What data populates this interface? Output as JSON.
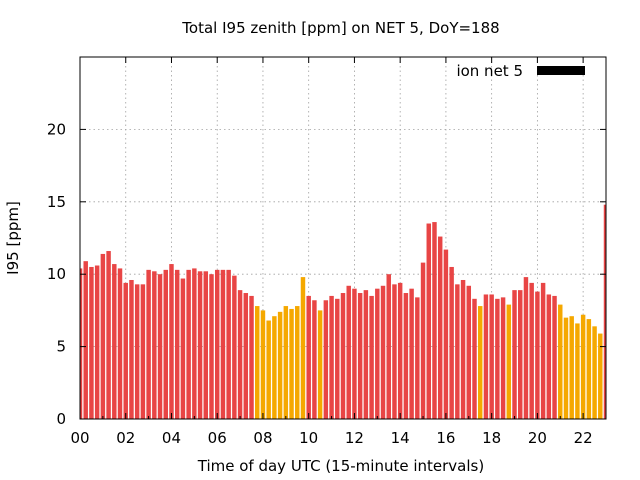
{
  "chart_data": {
    "type": "bar",
    "title": "Total I95 zenith [ppm] on NET 5, DoY=188",
    "xlabel": "Time of day UTC (15-minute intervals)",
    "ylabel": "I95 [ppm]",
    "xlim": [
      0,
      23
    ],
    "ylim": [
      0,
      25
    ],
    "x_ticks": [
      "00",
      "02",
      "04",
      "06",
      "08",
      "10",
      "12",
      "14",
      "16",
      "18",
      "20",
      "22"
    ],
    "y_ticks": [
      "0",
      "5",
      "10",
      "15",
      "20"
    ],
    "grid": true,
    "legend": {
      "position": "top-right",
      "label": "ion net 5",
      "color": "#000000"
    },
    "colors": {
      "high": "#e84545",
      "low": "#f5a800"
    },
    "series": [
      {
        "name": "ion net 5",
        "interval_hours": 0.25,
        "values": [
          10.4,
          10.9,
          10.5,
          10.6,
          11.4,
          11.6,
          10.7,
          10.4,
          9.4,
          9.6,
          9.3,
          9.3,
          10.3,
          10.2,
          10.0,
          10.3,
          10.7,
          10.3,
          9.7,
          10.3,
          10.4,
          10.2,
          10.2,
          10.0,
          10.3,
          10.3,
          10.3,
          9.9,
          8.9,
          8.7,
          8.5,
          7.8,
          7.5,
          6.8,
          7.1,
          7.4,
          7.8,
          7.6,
          7.8,
          9.8,
          8.5,
          8.2,
          7.5,
          8.2,
          8.5,
          8.3,
          8.7,
          9.2,
          9.0,
          8.7,
          8.9,
          8.5,
          9.0,
          9.2,
          10.0,
          9.3,
          9.4,
          8.7,
          9.0,
          8.4,
          10.8,
          13.5,
          13.6,
          12.6,
          11.7,
          10.5,
          9.3,
          9.6,
          9.2,
          8.3,
          7.8,
          8.6,
          8.6,
          8.3,
          8.4,
          7.9,
          8.9,
          8.9,
          9.8,
          9.4,
          8.8,
          9.4,
          8.6,
          8.5,
          7.9,
          7.0,
          7.1,
          6.6,
          7.2,
          6.9,
          6.4,
          5.9,
          14.8
        ],
        "categories": [
          "high",
          "high",
          "high",
          "high",
          "high",
          "high",
          "high",
          "high",
          "high",
          "high",
          "high",
          "high",
          "high",
          "high",
          "high",
          "high",
          "high",
          "high",
          "high",
          "high",
          "high",
          "high",
          "high",
          "high",
          "high",
          "high",
          "high",
          "high",
          "high",
          "high",
          "high",
          "low",
          "low",
          "low",
          "low",
          "low",
          "low",
          "low",
          "low",
          "low",
          "high",
          "high",
          "low",
          "high",
          "high",
          "high",
          "high",
          "high",
          "high",
          "high",
          "high",
          "high",
          "high",
          "high",
          "high",
          "high",
          "high",
          "high",
          "high",
          "high",
          "high",
          "high",
          "high",
          "high",
          "high",
          "high",
          "high",
          "high",
          "high",
          "high",
          "low",
          "high",
          "high",
          "high",
          "high",
          "low",
          "high",
          "high",
          "high",
          "high",
          "high",
          "high",
          "high",
          "high",
          "low",
          "low",
          "low",
          "low",
          "low",
          "low",
          "low",
          "low",
          "high"
        ]
      }
    ]
  }
}
